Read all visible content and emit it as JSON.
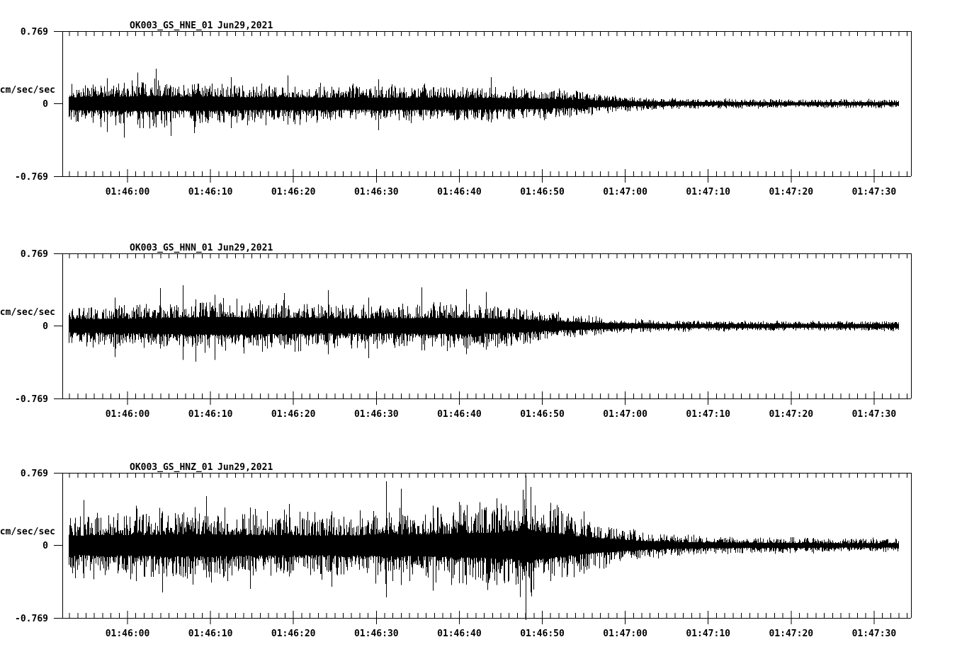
{
  "page": {
    "background": "#ffffff",
    "trace_color": "#000000"
  },
  "axis": {
    "ylabel": "cm/sec/sec",
    "y_top_label": "0.769",
    "y_zero_label": "0",
    "y_bottom_label": "-0.769",
    "ylim": [
      -0.769,
      0.769
    ],
    "time_axis": {
      "t0_s": -7.86,
      "t1_s": 94.45,
      "minor_step_s": 1,
      "major_ticks": [
        {
          "s": 0,
          "label": "01:46:00"
        },
        {
          "s": 10,
          "label": "01:46:10"
        },
        {
          "s": 20,
          "label": "01:46:20"
        },
        {
          "s": 30,
          "label": "01:46:30"
        },
        {
          "s": 40,
          "label": "01:46:40"
        },
        {
          "s": 50,
          "label": "01:46:50"
        },
        {
          "s": 60,
          "label": "01:47:00"
        },
        {
          "s": 70,
          "label": "01:47:10"
        },
        {
          "s": 80,
          "label": "01:47:20"
        },
        {
          "s": 90,
          "label": "01:47:30"
        }
      ]
    }
  },
  "chart_data": [
    {
      "type": "line",
      "title_station": "OK003_GS_HNE_01",
      "title_date": "Jun29,2021",
      "ylabel": "cm/sec/sec",
      "ylim": [
        -0.769,
        0.769
      ],
      "seed": 101,
      "core_fraction": 0.34,
      "trace_start_s": -7.1,
      "trace_end_s": 92.9,
      "envelope": [
        [
          -7.2,
          0.2
        ],
        [
          -4,
          0.21
        ],
        [
          0,
          0.22
        ],
        [
          3,
          0.24
        ],
        [
          6,
          0.21
        ],
        [
          10,
          0.22
        ],
        [
          14,
          0.2
        ],
        [
          20,
          0.195
        ],
        [
          26,
          0.185
        ],
        [
          32,
          0.19
        ],
        [
          38,
          0.18
        ],
        [
          44,
          0.175
        ],
        [
          48,
          0.165
        ],
        [
          52,
          0.14
        ],
        [
          55,
          0.115
        ],
        [
          58,
          0.09
        ],
        [
          61,
          0.072
        ],
        [
          64,
          0.06
        ],
        [
          68,
          0.052
        ],
        [
          74,
          0.047
        ],
        [
          82,
          0.043
        ],
        [
          88,
          0.045
        ],
        [
          93,
          0.046
        ]
      ],
      "spikes": [
        {
          "t": -2.5,
          "up": 0.27,
          "down": 0.3
        },
        {
          "t": -0.4,
          "up": 0.22,
          "down": 0.36
        },
        {
          "t": 1.2,
          "up": 0.33,
          "down": 0.22
        },
        {
          "t": 3.4,
          "up": 0.37,
          "down": 0.25
        },
        {
          "t": 5.2,
          "up": 0.18,
          "down": 0.34
        },
        {
          "t": 8.0,
          "up": 0.2,
          "down": 0.31
        },
        {
          "t": 12.5,
          "up": 0.28,
          "down": 0.26
        },
        {
          "t": 19.3,
          "up": 0.3,
          "down": 0.22
        },
        {
          "t": 30.2,
          "up": 0.26,
          "down": 0.28
        },
        {
          "t": 43.8,
          "up": 0.28,
          "down": 0.2
        }
      ]
    },
    {
      "type": "line",
      "title_station": "OK003_GS_HNN_01",
      "title_date": "Jun29,2021",
      "ylabel": "cm/sec/sec",
      "ylim": [
        -0.769,
        0.769
      ],
      "seed": 7321,
      "core_fraction": 0.36,
      "trace_start_s": -7.1,
      "trace_end_s": 92.9,
      "envelope": [
        [
          -7.2,
          0.19
        ],
        [
          -3,
          0.2
        ],
        [
          0,
          0.21
        ],
        [
          4,
          0.23
        ],
        [
          8,
          0.25
        ],
        [
          12,
          0.26
        ],
        [
          16,
          0.24
        ],
        [
          20,
          0.235
        ],
        [
          24,
          0.22
        ],
        [
          28,
          0.215
        ],
        [
          32,
          0.22
        ],
        [
          36,
          0.23
        ],
        [
          40,
          0.235
        ],
        [
          44,
          0.22
        ],
        [
          47,
          0.19
        ],
        [
          50,
          0.15
        ],
        [
          53,
          0.12
        ],
        [
          56,
          0.095
        ],
        [
          59,
          0.075
        ],
        [
          62,
          0.063
        ],
        [
          66,
          0.055
        ],
        [
          72,
          0.05
        ],
        [
          80,
          0.047
        ],
        [
          86,
          0.05
        ],
        [
          93,
          0.05
        ]
      ],
      "spikes": [
        {
          "t": -1.5,
          "up": 0.3,
          "down": 0.33
        },
        {
          "t": 3.9,
          "up": 0.4,
          "down": 0.24
        },
        {
          "t": 6.7,
          "up": 0.43,
          "down": 0.36
        },
        {
          "t": 8.2,
          "up": 0.28,
          "down": 0.38
        },
        {
          "t": 10.5,
          "up": 0.33,
          "down": 0.36
        },
        {
          "t": 18.9,
          "up": 0.35,
          "down": 0.24
        },
        {
          "t": 24.2,
          "up": 0.38,
          "down": 0.3
        },
        {
          "t": 29.0,
          "up": 0.3,
          "down": 0.34
        },
        {
          "t": 35.4,
          "up": 0.41,
          "down": 0.26
        },
        {
          "t": 40.8,
          "up": 0.39,
          "down": 0.3
        },
        {
          "t": 43.2,
          "up": 0.36,
          "down": 0.25
        }
      ]
    },
    {
      "type": "line",
      "title_station": "OK003_GS_HNZ_01",
      "title_date": "Jun29,2021",
      "ylabel": "cm/sec/sec",
      "ylim": [
        -0.769,
        0.769
      ],
      "seed": 90210,
      "core_fraction": 0.33,
      "trace_start_s": -7.1,
      "trace_end_s": 92.9,
      "envelope": [
        [
          -7.2,
          0.3
        ],
        [
          -4,
          0.32
        ],
        [
          0,
          0.33
        ],
        [
          4,
          0.34
        ],
        [
          8,
          0.36
        ],
        [
          12,
          0.34
        ],
        [
          16,
          0.33
        ],
        [
          20,
          0.32
        ],
        [
          24,
          0.31
        ],
        [
          28,
          0.32
        ],
        [
          31,
          0.36
        ],
        [
          34,
          0.34
        ],
        [
          37,
          0.36
        ],
        [
          40,
          0.38
        ],
        [
          43,
          0.4
        ],
        [
          46,
          0.42
        ],
        [
          48,
          0.52
        ],
        [
          49.5,
          0.44
        ],
        [
          52,
          0.36
        ],
        [
          54,
          0.3
        ],
        [
          56,
          0.25
        ],
        [
          58,
          0.21
        ],
        [
          60,
          0.17
        ],
        [
          63,
          0.13
        ],
        [
          66,
          0.105
        ],
        [
          70,
          0.09
        ],
        [
          76,
          0.08
        ],
        [
          84,
          0.072
        ],
        [
          93,
          0.07
        ]
      ],
      "spikes": [
        {
          "t": -5.3,
          "up": 0.48,
          "down": 0.35
        },
        {
          "t": 1.0,
          "up": 0.42,
          "down": 0.38
        },
        {
          "t": 4.2,
          "up": 0.36,
          "down": 0.5
        },
        {
          "t": 9.5,
          "up": 0.52,
          "down": 0.34
        },
        {
          "t": 14.8,
          "up": 0.4,
          "down": 0.46
        },
        {
          "t": 19.5,
          "up": 0.44,
          "down": 0.33
        },
        {
          "t": 24.6,
          "up": 0.36,
          "down": 0.44
        },
        {
          "t": 31.2,
          "up": 0.68,
          "down": 0.55
        },
        {
          "t": 33.0,
          "up": 0.6,
          "down": 0.42
        },
        {
          "t": 36.8,
          "up": 0.42,
          "down": 0.48
        },
        {
          "t": 40.0,
          "up": 0.46,
          "down": 0.4
        },
        {
          "t": 44.5,
          "up": 0.5,
          "down": 0.42
        },
        {
          "t": 48.0,
          "up": 0.74,
          "down": 0.79
        },
        {
          "t": 48.6,
          "up": 0.62,
          "down": 0.5
        },
        {
          "t": 51.0,
          "up": 0.44,
          "down": 0.38
        },
        {
          "t": 55.0,
          "up": 0.36,
          "down": 0.3
        }
      ]
    }
  ]
}
